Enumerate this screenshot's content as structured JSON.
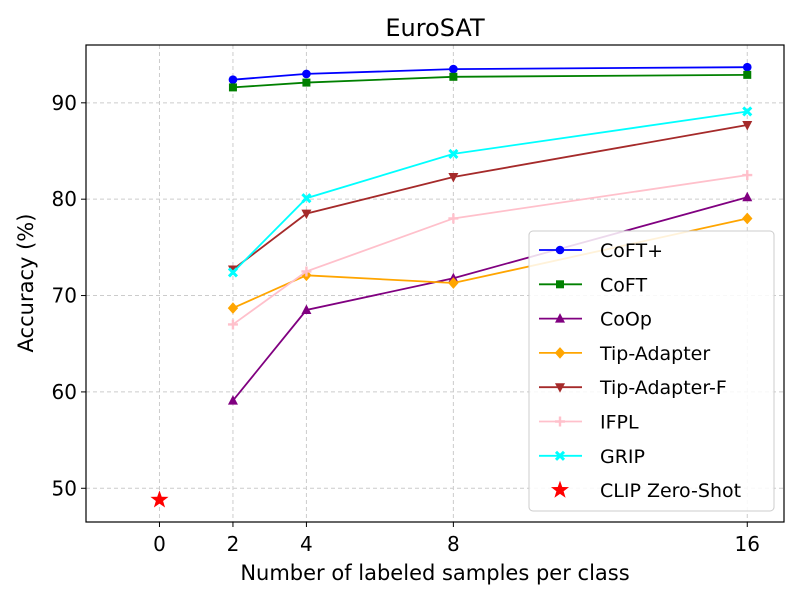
{
  "chart_data": {
    "type": "line",
    "title": "EuroSAT",
    "xlabel": "Number of labeled samples per class",
    "ylabel": "Accuracy (%)",
    "xlim": [
      -2,
      17
    ],
    "ylim": [
      46.5,
      96
    ],
    "x_ticks": [
      0,
      2,
      4,
      8,
      16
    ],
    "y_ticks": [
      50,
      60,
      70,
      80,
      90
    ],
    "grid": true,
    "legend_position": "lower-right",
    "series": [
      {
        "name": "CoFT+",
        "color": "#0000ff",
        "marker": "circle",
        "x": [
          2,
          4,
          8,
          16
        ],
        "values": [
          92.4,
          93.0,
          93.5,
          93.7
        ]
      },
      {
        "name": "CoFT",
        "color": "#008000",
        "marker": "square",
        "x": [
          2,
          4,
          8,
          16
        ],
        "values": [
          91.6,
          92.1,
          92.7,
          92.9
        ]
      },
      {
        "name": "CoOp",
        "color": "#800080",
        "marker": "triangle-up",
        "x": [
          2,
          4,
          8,
          16
        ],
        "values": [
          59.1,
          68.5,
          71.8,
          80.2
        ]
      },
      {
        "name": "Tip-Adapter",
        "color": "#ffa500",
        "marker": "diamond",
        "x": [
          2,
          4,
          8,
          16
        ],
        "values": [
          68.7,
          72.1,
          71.3,
          78.0
        ]
      },
      {
        "name": "Tip-Adapter-F",
        "color": "#a52a2a",
        "marker": "triangle-down",
        "x": [
          2,
          4,
          8,
          16
        ],
        "values": [
          72.7,
          78.5,
          82.3,
          87.7
        ]
      },
      {
        "name": "IFPL",
        "color": "#ffc0cb",
        "marker": "plus",
        "x": [
          2,
          4,
          8,
          16
        ],
        "values": [
          67.0,
          72.5,
          78.0,
          82.5
        ]
      },
      {
        "name": "GRIP",
        "color": "#00ffff",
        "marker": "x",
        "x": [
          2,
          4,
          8,
          16
        ],
        "values": [
          72.4,
          80.1,
          84.7,
          89.1
        ]
      },
      {
        "name": "CLIP Zero-Shot",
        "color": "#ff0000",
        "marker": "star",
        "x": [
          0
        ],
        "values": [
          48.8
        ]
      }
    ]
  }
}
